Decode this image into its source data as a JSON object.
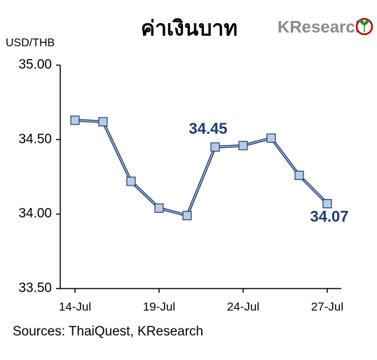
{
  "chart_data": {
    "type": "line",
    "title": "ค่าเงินบาท",
    "y_label": "USD/THB",
    "source": "Sources: ThaiQuest, KResearch",
    "categories": [
      "14-Jul",
      null,
      null,
      "19-Jul",
      null,
      null,
      "24-Jul",
      null,
      null,
      "27-Jul"
    ],
    "series": [
      {
        "name": "USD/THB",
        "color": "#1f3b73",
        "values": [
          34.63,
          34.62,
          34.22,
          34.04,
          33.99,
          34.45,
          34.46,
          34.51,
          34.26,
          34.07
        ],
        "value_labels": [
          null,
          null,
          null,
          null,
          null,
          "34.45",
          null,
          null,
          null,
          "34.07"
        ]
      }
    ],
    "ylim": [
      33.5,
      35.0
    ],
    "yticks": [
      {
        "value": 33.5,
        "label": "33.50"
      },
      {
        "value": 34.0,
        "label": "34.00"
      },
      {
        "value": 34.5,
        "label": "34.50"
      },
      {
        "value": 35.0,
        "label": "35.00"
      }
    ],
    "grid": false
  },
  "logo": "KResearch"
}
